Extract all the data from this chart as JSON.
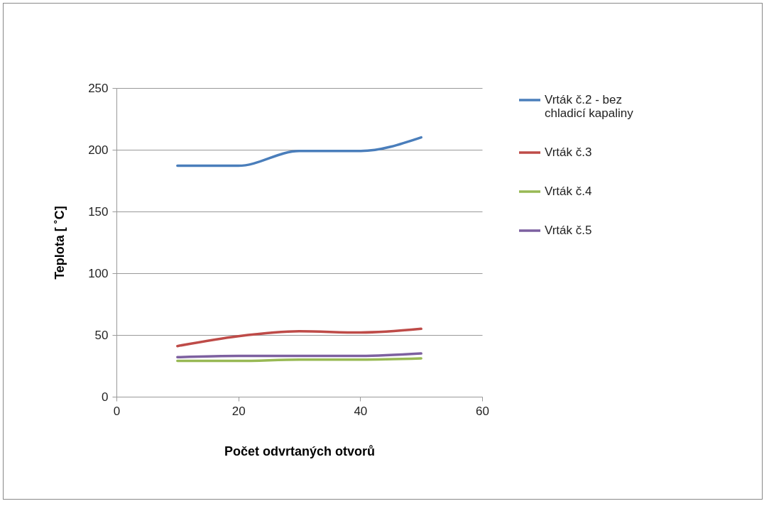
{
  "chart_data": {
    "type": "line",
    "xlabel": "Počet odvrtaných otvorů",
    "ylabel": "Teplota  [ ˚C]",
    "x": [
      10,
      20,
      30,
      40,
      50
    ],
    "xlim": [
      0,
      60
    ],
    "xticks": [
      0,
      20,
      40,
      60
    ],
    "ylim": [
      0,
      250
    ],
    "yticks": [
      0,
      50,
      100,
      150,
      200,
      250
    ],
    "grid": "y",
    "legend": "right",
    "marker": "none",
    "line_style": "solid",
    "series": [
      {
        "name": "Vrták č.2 - bez chladicí kapaliny",
        "color": "#4a7ebb",
        "values": [
          187,
          187,
          199,
          199,
          210
        ]
      },
      {
        "name": "Vrták č.3",
        "color": "#be4b48",
        "values": [
          41,
          49,
          53,
          52,
          55
        ]
      },
      {
        "name": "Vrták č.4",
        "color": "#98b954",
        "values": [
          29,
          29,
          30,
          30,
          31
        ]
      },
      {
        "name": "Vrták č.5",
        "color": "#7d60a0",
        "values": [
          32,
          33,
          33,
          33,
          35
        ]
      }
    ]
  }
}
